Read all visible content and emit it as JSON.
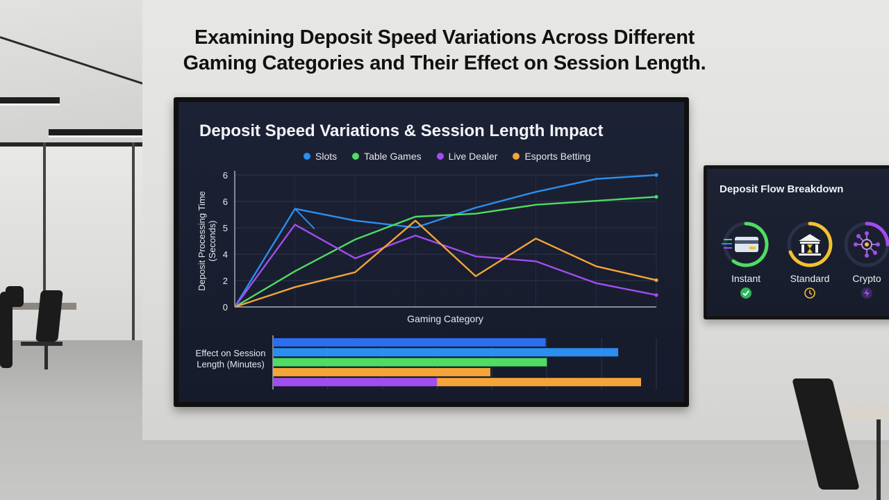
{
  "headline": {
    "line1": "Examining Deposit Speed Variations Across Different",
    "line2": "Gaming Categories and Their Effect on Session Length."
  },
  "chart_data": [
    {
      "type": "line",
      "title": "Deposit Speed Variations & Session Length Impact",
      "xlabel": "Gaming Category",
      "ylabel": "Deposit Processing Time (Seconds)",
      "y_ticks": [
        "0",
        "2",
        "4",
        "5",
        "6",
        "6"
      ],
      "legend_position": "top",
      "grid": true,
      "series": [
        {
          "name": "Slots",
          "color": "#2b8ff0",
          "values": [
            0,
            4.95,
            4.35,
            4.0,
            5.0,
            5.8,
            6.45,
            6.65
          ]
        },
        {
          "name": "Table Games",
          "color": "#4fdc63",
          "values": [
            0,
            1.8,
            3.4,
            4.55,
            4.7,
            5.15,
            5.35,
            5.55
          ]
        },
        {
          "name": "Live Dealer",
          "color": "#a24df0",
          "values": [
            0,
            4.15,
            2.45,
            3.6,
            2.55,
            2.3,
            1.2,
            0.6
          ]
        },
        {
          "name": "Esports Betting",
          "color": "#f5a43a",
          "values": [
            0,
            1.0,
            1.75,
            4.35,
            1.55,
            3.45,
            2.05,
            1.35
          ]
        }
      ],
      "extra_segments": {
        "slots_to_live_dealer_peak_link": [
          4.95,
          4.15
        ]
      },
      "x_points": 8
    },
    {
      "type": "bar",
      "orientation": "horizontal",
      "ylabel": "Effect on Session Length (Minutes)",
      "xlim": [
        0,
        100
      ],
      "bars": [
        {
          "series": "Slots",
          "color": "#2b6ff0",
          "value": 71.5
        },
        {
          "series": "Slots",
          "color": "#2b8ff0",
          "value": 90.5
        },
        {
          "series": "Table Games",
          "color": "#4fdc63",
          "value": 71.8
        },
        {
          "series": "Esports Betting",
          "color": "#f5a43a",
          "value": 57.0
        },
        {
          "series": "Live Dealer",
          "color": "#a24df0",
          "value": 43.0,
          "stack_next": {
            "series": "Esports Betting",
            "color": "#f5a43a",
            "value": 53.5
          }
        }
      ],
      "grid": true
    }
  ],
  "side_panel": {
    "title": "Deposit Flow Breakdown",
    "items": [
      {
        "label": "Instant",
        "icon": "card-icon",
        "status_icon": "check-icon",
        "ring_color": "#4fdc63",
        "status_color": "#2fb55a"
      },
      {
        "label": "Standard",
        "icon": "bank-icon",
        "status_icon": "clock-icon",
        "ring_color": "#f2c230",
        "status_color": "#f2c230"
      },
      {
        "label": "Crypto",
        "icon": "network-icon",
        "status_icon": "bolt-icon",
        "ring_color": "#a24df0",
        "status_color": "#a24df0"
      }
    ]
  }
}
